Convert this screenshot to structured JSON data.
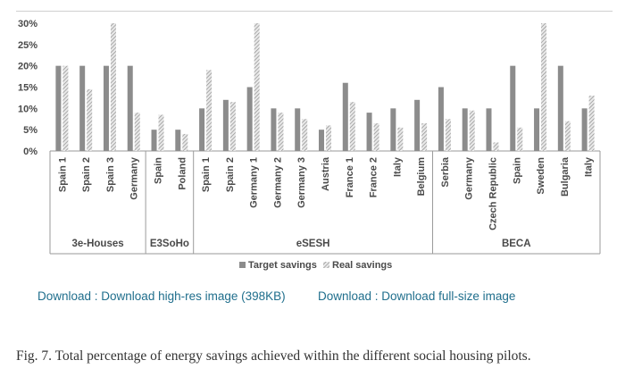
{
  "chart_data": {
    "type": "bar",
    "title": "",
    "xlabel": "",
    "ylabel": "",
    "ylim": [
      0,
      30
    ],
    "yticks": [
      "0%",
      "5%",
      "10%",
      "15%",
      "20%",
      "25%",
      "30%"
    ],
    "grid": false,
    "legend_position": "bottom",
    "categories": [
      "Spain 1",
      "Spain 2",
      "Spain 3",
      "Germany",
      "Spain",
      "Poland",
      "Spain 1",
      "Spain 2",
      "Germany 1",
      "Germany 2",
      "Germany 3",
      "Austria",
      "France 1",
      "France 2",
      "Italy",
      "Belgium",
      "Serbia",
      "Germany",
      "Czech Republic",
      "Spain",
      "Sweden",
      "Bulgaria",
      "Italy"
    ],
    "groups": [
      {
        "name": "3e-Houses",
        "count": 4
      },
      {
        "name": "E3SoHo",
        "count": 2
      },
      {
        "name": "eSESH",
        "count": 10
      },
      {
        "name": "BECA",
        "count": 7
      }
    ],
    "series": [
      {
        "name": "Target savings",
        "color": "#8c8c8c",
        "values": [
          20,
          20,
          20,
          20,
          5,
          5,
          10,
          12,
          15,
          10,
          10,
          5,
          16,
          9,
          10,
          12,
          15,
          10,
          10,
          20,
          10,
          20,
          10
        ]
      },
      {
        "name": "Real savings",
        "color": "#bdbdbd",
        "pattern": "diagonal-hatch",
        "values": [
          20,
          14.5,
          30,
          9,
          8.5,
          4,
          19,
          11.5,
          30,
          9,
          7.5,
          6,
          11.5,
          6.5,
          5.5,
          6.5,
          7.5,
          9.5,
          2,
          5.5,
          30,
          7,
          13
        ]
      }
    ]
  },
  "downloads": {
    "highres_label": "Download : Download high-res image (398KB)",
    "fullsize_label": "Download : Download full-size image"
  },
  "caption": "Fig. 7. Total percentage of energy savings achieved within the different social housing pilots."
}
